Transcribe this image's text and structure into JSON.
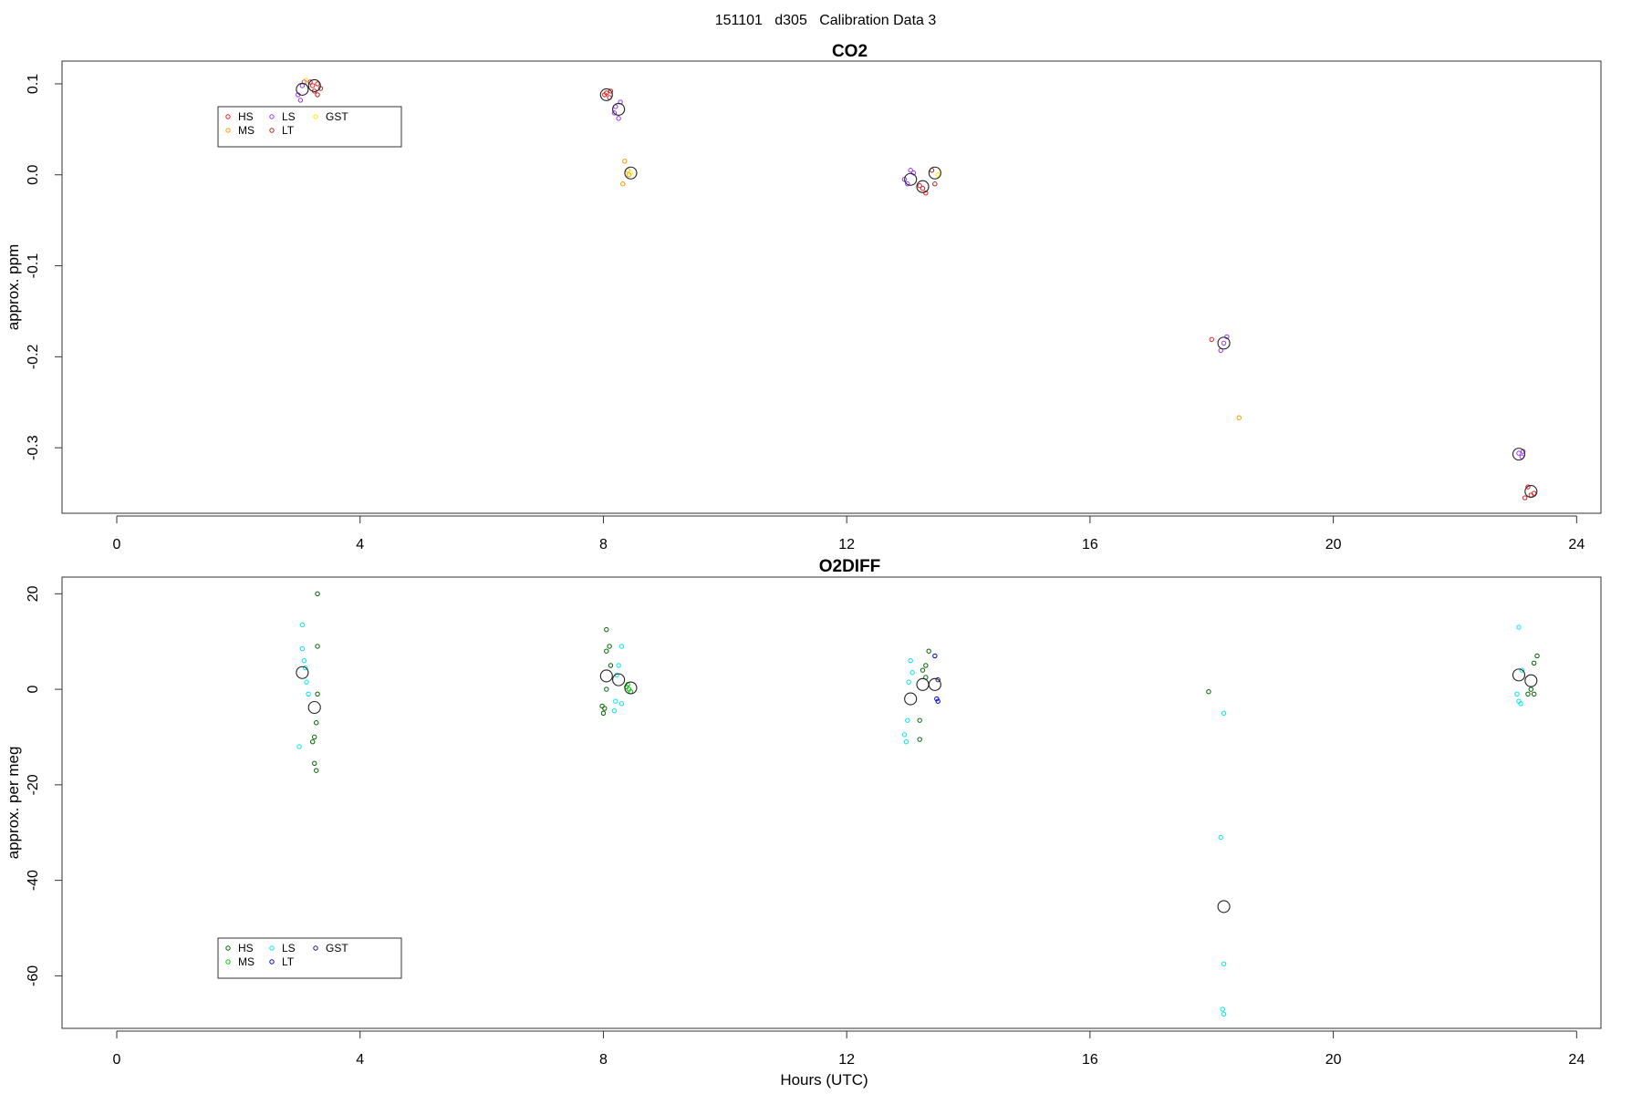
{
  "page_title": "151101   d305   Calibration Data 3",
  "chart_data": [
    {
      "type": "scatter",
      "title": "CO2",
      "xlabel": "",
      "ylabel": "approx. ppm",
      "xlim": [
        -0.9,
        24.4
      ],
      "ylim": [
        -0.372,
        0.125
      ],
      "xticks": [
        "0",
        "4",
        "8",
        "12",
        "16",
        "20",
        "24"
      ],
      "yticks": [
        "-0.3",
        "-0.2",
        "-0.1",
        "0.0",
        "0.1"
      ],
      "legend": {
        "position": "top-left",
        "entries": [
          {
            "name": "HS",
            "color": "#e41a1c"
          },
          {
            "name": "MS",
            "color": "#ff9900"
          },
          {
            "name": "LS",
            "color": "#9933ff"
          },
          {
            "name": "LT",
            "color": "#b22222"
          },
          {
            "name": "GST",
            "color": "#ffee00"
          }
        ]
      },
      "series": [
        {
          "name": "HS",
          "color": "#e41a1c",
          "points": [
            [
              3.22,
              0.098
            ],
            [
              3.25,
              0.092
            ],
            [
              3.3,
              0.1
            ],
            [
              3.18,
              0.102
            ],
            [
              8.05,
              0.09
            ],
            [
              8.1,
              0.085
            ],
            [
              8.02,
              0.088
            ],
            [
              8.12,
              0.092
            ],
            [
              13.25,
              -0.015
            ],
            [
              13.3,
              -0.02
            ],
            [
              13.2,
              -0.012
            ],
            [
              18.0,
              -0.181
            ],
            [
              23.2,
              -0.343
            ],
            [
              23.25,
              -0.352
            ],
            [
              23.3,
              -0.35
            ],
            [
              23.15,
              -0.355
            ]
          ]
        },
        {
          "name": "MS",
          "color": "#ff9900",
          "points": [
            [
              8.35,
              0.015
            ],
            [
              8.4,
              0.005
            ],
            [
              8.32,
              -0.01
            ],
            [
              8.42,
              0.0
            ],
            [
              18.45,
              -0.267
            ]
          ]
        },
        {
          "name": "LS",
          "color": "#9933ff",
          "points": [
            [
              2.98,
              0.088
            ],
            [
              3.05,
              0.098
            ],
            [
              3.02,
              0.082
            ],
            [
              3.08,
              0.102
            ],
            [
              8.2,
              0.075
            ],
            [
              8.25,
              0.062
            ],
            [
              8.18,
              0.068
            ],
            [
              8.28,
              0.08
            ],
            [
              12.95,
              -0.005
            ],
            [
              13.05,
              0.005
            ],
            [
              13.0,
              -0.01
            ],
            [
              13.1,
              0.002
            ],
            [
              18.2,
              -0.185
            ],
            [
              18.25,
              -0.178
            ],
            [
              18.15,
              -0.193
            ],
            [
              23.05,
              -0.306
            ],
            [
              23.1,
              -0.31
            ],
            [
              23.12,
              -0.304
            ]
          ]
        },
        {
          "name": "LT",
          "color": "#b22222",
          "points": [
            [
              3.3,
              0.088
            ],
            [
              3.35,
              0.095
            ],
            [
              13.45,
              -0.01
            ],
            [
              13.4,
              0.005
            ]
          ]
        },
        {
          "name": "GST",
          "color": "#ffee00",
          "points": [
            [
              3.1,
              0.104
            ],
            [
              8.45,
              0.002
            ],
            [
              13.5,
              0.0
            ]
          ]
        }
      ],
      "means": [
        [
          3.05,
          0.094
        ],
        [
          3.25,
          0.098
        ],
        [
          8.05,
          0.088
        ],
        [
          8.25,
          0.072
        ],
        [
          8.45,
          0.002
        ],
        [
          13.05,
          -0.005
        ],
        [
          13.25,
          -0.013
        ],
        [
          13.45,
          0.002
        ],
        [
          18.2,
          -0.185
        ],
        [
          23.05,
          -0.307
        ],
        [
          23.25,
          -0.348
        ]
      ]
    },
    {
      "type": "scatter",
      "title": "O2DIFF",
      "xlabel": "Hours (UTC)",
      "ylabel": "approx. per meg",
      "xlim": [
        -0.9,
        24.4
      ],
      "ylim": [
        -71,
        23.5
      ],
      "xticks": [
        "0",
        "4",
        "8",
        "12",
        "16",
        "20",
        "24"
      ],
      "yticks": [
        "-60",
        "-40",
        "-20",
        "0",
        "20"
      ],
      "legend": {
        "position": "bottom-left",
        "entries": [
          {
            "name": "HS",
            "color": "#006400"
          },
          {
            "name": "MS",
            "color": "#00cc00"
          },
          {
            "name": "LS",
            "color": "#00e5ee"
          },
          {
            "name": "LT",
            "color": "#0000cd"
          },
          {
            "name": "GST",
            "color": "#191970"
          }
        ]
      },
      "series": [
        {
          "name": "HS",
          "color": "#006400",
          "points": [
            [
              3.3,
              20
            ],
            [
              3.3,
              9
            ],
            [
              3.3,
              -1
            ],
            [
              3.28,
              -7
            ],
            [
              3.25,
              -10
            ],
            [
              3.22,
              -11
            ],
            [
              3.25,
              -15.5
            ],
            [
              3.28,
              -17
            ],
            [
              8.05,
              12.5
            ],
            [
              8.1,
              9
            ],
            [
              8.05,
              8
            ],
            [
              8.12,
              5
            ],
            [
              7.98,
              -3.5
            ],
            [
              8.0,
              -5
            ],
            [
              8.02,
              -4
            ],
            [
              8.05,
              0
            ],
            [
              13.35,
              8
            ],
            [
              13.3,
              5
            ],
            [
              13.25,
              4
            ],
            [
              13.3,
              2.5
            ],
            [
              13.2,
              -6.5
            ],
            [
              13.2,
              -10.5
            ],
            [
              17.95,
              -0.5
            ],
            [
              23.35,
              7
            ],
            [
              23.3,
              5.5
            ],
            [
              23.25,
              0
            ],
            [
              23.3,
              -1
            ],
            [
              23.2,
              -1
            ]
          ]
        },
        {
          "name": "MS",
          "color": "#00cc00",
          "points": [
            [
              8.4,
              1
            ],
            [
              8.42,
              0
            ],
            [
              8.45,
              -0.5
            ],
            [
              8.38,
              0.5
            ]
          ]
        },
        {
          "name": "LS",
          "color": "#00e5ee",
          "points": [
            [
              3.05,
              13.5
            ],
            [
              3.05,
              8.5
            ],
            [
              3.08,
              6
            ],
            [
              3.1,
              4.5
            ],
            [
              3.12,
              1.5
            ],
            [
              3.15,
              -1
            ],
            [
              3.0,
              -12
            ],
            [
              8.3,
              9
            ],
            [
              8.25,
              5
            ],
            [
              8.22,
              3
            ],
            [
              8.2,
              -2.5
            ],
            [
              8.18,
              -4.5
            ],
            [
              8.3,
              -3
            ],
            [
              13.05,
              6
            ],
            [
              13.08,
              3.5
            ],
            [
              13.02,
              1.5
            ],
            [
              13.0,
              -6.5
            ],
            [
              12.95,
              -9.5
            ],
            [
              12.98,
              -11
            ],
            [
              18.2,
              -5
            ],
            [
              18.15,
              -31
            ],
            [
              18.2,
              -57.5
            ],
            [
              18.18,
              -67
            ],
            [
              18.2,
              -68
            ],
            [
              23.05,
              13
            ],
            [
              23.1,
              4
            ],
            [
              23.02,
              -1
            ],
            [
              23.05,
              -2.5
            ],
            [
              23.08,
              -3
            ]
          ]
        },
        {
          "name": "LT",
          "color": "#0000cd",
          "points": [
            [
              13.45,
              7
            ],
            [
              13.48,
              -2
            ],
            [
              13.5,
              -2.5
            ]
          ]
        },
        {
          "name": "GST",
          "color": "#191970",
          "points": [
            [
              13.5,
              2
            ]
          ]
        }
      ],
      "means": [
        [
          3.05,
          3.5
        ],
        [
          3.25,
          -3.8
        ],
        [
          8.05,
          2.8
        ],
        [
          8.25,
          2
        ],
        [
          8.45,
          0.3
        ],
        [
          13.05,
          -2
        ],
        [
          13.25,
          1
        ],
        [
          13.45,
          1
        ],
        [
          18.2,
          -45.5
        ],
        [
          23.05,
          3
        ],
        [
          23.25,
          1.8
        ]
      ]
    }
  ]
}
